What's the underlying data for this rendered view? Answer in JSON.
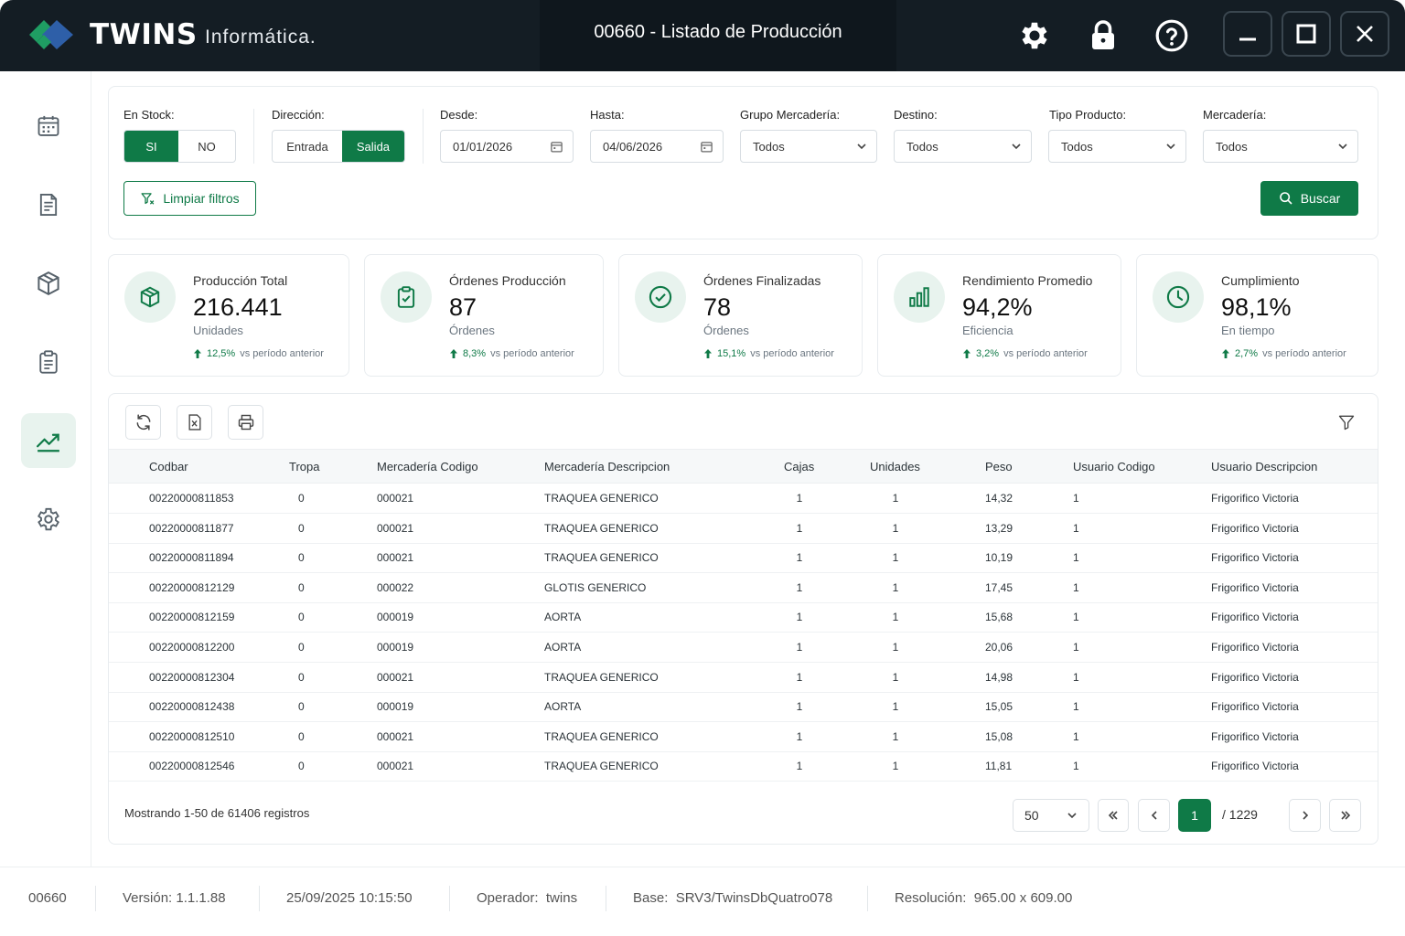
{
  "app": {
    "brand": "TWINS",
    "brand_sub": "Informática.",
    "window_title": "00660 - Listado de Producción"
  },
  "titlebar_icons": [
    "gear-icon",
    "lock-icon",
    "help-icon",
    "minimize-icon",
    "maximize-icon",
    "close-icon"
  ],
  "sidebar": [
    "calendar-icon",
    "document-icon",
    "box-icon",
    "clipboard-icon",
    "chart-icon",
    "settings-icon"
  ],
  "filters": {
    "stock": {
      "label": "En Stock:",
      "options": [
        "SI",
        "NO"
      ],
      "selected": "SI"
    },
    "direccion": {
      "label": "Dirección:",
      "options": [
        "Entrada",
        "Salida"
      ],
      "selected": "Salida"
    },
    "desde": {
      "label": "Desde:",
      "value": "01/01/2026"
    },
    "hasta": {
      "label": "Hasta:",
      "value": "04/06/2026"
    },
    "grupo": {
      "label": "Grupo Mercadería:",
      "value": "Todos"
    },
    "destino": {
      "label": "Destino:",
      "value": "Todos"
    },
    "tipo": {
      "label": "Tipo Producto:",
      "value": "Todos"
    },
    "mercaderia": {
      "label": "Mercadería:",
      "value": "Todos"
    },
    "clear_label": "Limpiar filtros",
    "search_label": "Buscar"
  },
  "kpis": [
    {
      "title": "Producción Total",
      "value": "216.441",
      "unit": "Unidades",
      "pct": "12,5%",
      "suffix": "vs período anterior",
      "icon": "cube-icon"
    },
    {
      "title": "Órdenes Producción",
      "value": "87",
      "unit": "Órdenes",
      "pct": "8,3%",
      "suffix": "vs período anterior",
      "icon": "clipboard-check-icon"
    },
    {
      "title": "Órdenes Finalizadas",
      "value": "78",
      "unit": "Órdenes",
      "pct": "15,1%",
      "suffix": "vs período anterior",
      "icon": "check-circle-icon"
    },
    {
      "title": "Rendimiento Promedio",
      "value": "94,2%",
      "unit": "Eficiencia",
      "pct": "3,2%",
      "suffix": "vs período anterior",
      "icon": "bar-chart-icon"
    },
    {
      "title": "Cumplimiento",
      "value": "98,1%",
      "unit": "En tiempo",
      "pct": "2,7%",
      "suffix": "vs período anterior",
      "icon": "clock-icon"
    }
  ],
  "table": {
    "columns": [
      "Codbar",
      "Tropa",
      "Mercadería Codigo",
      "Mercadería Descripcion",
      "Cajas",
      "Unidades",
      "Peso",
      "Usuario Codigo",
      "Usuario Descripcion"
    ],
    "rows": [
      [
        "00220000811853",
        "0",
        "000021",
        "TRAQUEA GENERICO",
        "1",
        "1",
        "14,32",
        "1",
        "Frigorifico Victoria"
      ],
      [
        "00220000811877",
        "0",
        "000021",
        "TRAQUEA GENERICO",
        "1",
        "1",
        "13,29",
        "1",
        "Frigorifico Victoria"
      ],
      [
        "00220000811894",
        "0",
        "000021",
        "TRAQUEA GENERICO",
        "1",
        "1",
        "10,19",
        "1",
        "Frigorifico Victoria"
      ],
      [
        "00220000812129",
        "0",
        "000022",
        "GLOTIS GENERICO",
        "1",
        "1",
        "17,45",
        "1",
        "Frigorifico Victoria"
      ],
      [
        "00220000812159",
        "0",
        "000019",
        "AORTA",
        "1",
        "1",
        "15,68",
        "1",
        "Frigorifico Victoria"
      ],
      [
        "00220000812200",
        "0",
        "000019",
        "AORTA",
        "1",
        "1",
        "20,06",
        "1",
        "Frigorifico Victoria"
      ],
      [
        "00220000812304",
        "0",
        "000021",
        "TRAQUEA GENERICO",
        "1",
        "1",
        "14,98",
        "1",
        "Frigorifico Victoria"
      ],
      [
        "00220000812438",
        "0",
        "000019",
        "AORTA",
        "1",
        "1",
        "15,05",
        "1",
        "Frigorifico Victoria"
      ],
      [
        "00220000812510",
        "0",
        "000021",
        "TRAQUEA GENERICO",
        "1",
        "1",
        "15,08",
        "1",
        "Frigorifico Victoria"
      ],
      [
        "00220000812546",
        "0",
        "000021",
        "TRAQUEA GENERICO",
        "1",
        "1",
        "11,81",
        "1",
        "Frigorifico Victoria"
      ]
    ],
    "footer": "Mostrando 1-50 de 61406 registros",
    "page_size": "50",
    "current_page": "1",
    "total_pages": "/ 1229"
  },
  "status": {
    "code": "00660",
    "version_label": "Versión:",
    "version": "1.1.1.88",
    "datetime": "25/09/2025 10:15:50",
    "operator_label": "Operador:",
    "operator": "twins",
    "base_label": "Base:",
    "base": "SRV3/TwinsDbQuatro078",
    "resolution_label": "Resolución:",
    "resolution": "965.00 x 609.00"
  },
  "colors": {
    "accent": "#0f7a47",
    "titlebar": "#141d24",
    "accent_light": "#e8f3ee"
  }
}
